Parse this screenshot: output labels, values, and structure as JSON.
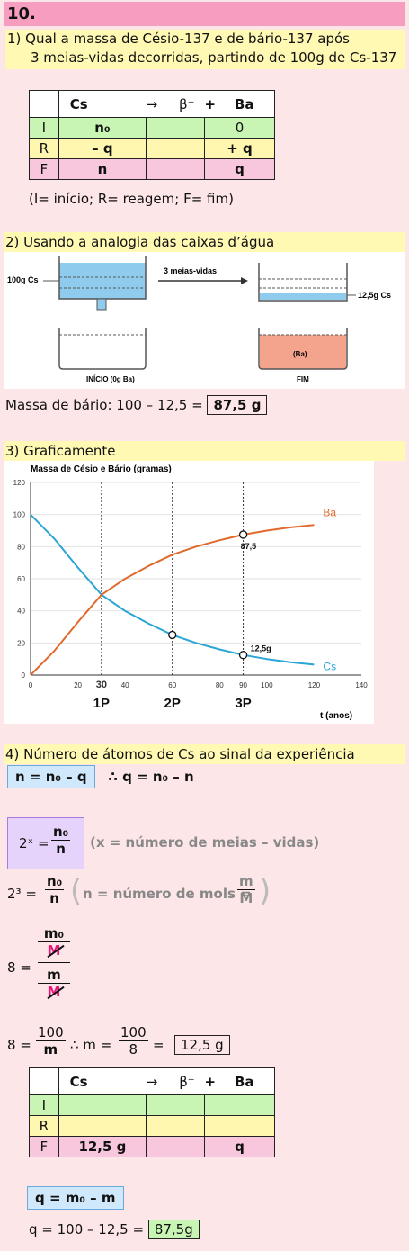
{
  "header": {
    "number": "10."
  },
  "q1": {
    "line1": "1)   Qual a massa de Césio-137 e de bário-137 após",
    "line2": "3 meias-vidas decorridas, partindo de 100g de Cs-137"
  },
  "table1": {
    "header": [
      "",
      "Cs",
      "→",
      "β⁻",
      "+",
      "Ba"
    ],
    "rows": [
      {
        "label": "I",
        "cs": "n₀",
        "beta": "",
        "ba": "0"
      },
      {
        "label": "R",
        "cs": "– q",
        "beta": "",
        "ba": "+ q"
      },
      {
        "label": "F",
        "cs": "n",
        "beta": "",
        "ba": "q"
      }
    ],
    "legend": "(I= início; R= reagem; F= fim)"
  },
  "sec2": {
    "title": "2) Usando a analogia das caixas d’água"
  },
  "tanks": {
    "left_label": "100g Cs",
    "arrow_label": "3 meias-vidas",
    "right_label": "12,5g Cs",
    "bottom_left_label": "INÍCIO (0g Ba)",
    "bottom_right_inner": "(Ba)",
    "bottom_right_label": "FIM",
    "water_color": "#8fcbec",
    "ba_color": "#f4a38c"
  },
  "mass_ba": {
    "text": "Massa de bário: 100 – 12,5 =",
    "result": "87,5 g"
  },
  "sec3": {
    "title": "3) Graficamente"
  },
  "chart_data": {
    "type": "line",
    "title": "Massa de Césio e Bário (gramas)",
    "xlabel": "t (anos)",
    "ylabel": "",
    "xlim": [
      0,
      140
    ],
    "ylim": [
      0,
      120
    ],
    "xticks": [
      0,
      20,
      30,
      40,
      60,
      80,
      90,
      100,
      120,
      140
    ],
    "yticks": [
      0,
      20,
      40,
      60,
      80,
      100,
      120
    ],
    "period_lines": [
      30,
      60,
      90
    ],
    "period_labels": [
      "1P",
      "2P",
      "3P"
    ],
    "series": [
      {
        "name": "Cs",
        "color": "#2aa5d6",
        "x": [
          0,
          10,
          20,
          30,
          40,
          50,
          60,
          70,
          80,
          90,
          100,
          110,
          120
        ],
        "y": [
          100,
          85,
          67,
          50,
          40,
          32,
          25,
          20,
          16,
          12.5,
          10,
          8,
          6.5
        ]
      },
      {
        "name": "Ba",
        "color": "#e06a2c",
        "x": [
          0,
          10,
          20,
          30,
          40,
          50,
          60,
          70,
          80,
          90,
          100,
          110,
          120
        ],
        "y": [
          0,
          15,
          33,
          50,
          60,
          68,
          75,
          80,
          84,
          87.5,
          90,
          92,
          93.5
        ]
      }
    ],
    "markers": [
      {
        "x": 60,
        "y": 25,
        "label": ""
      },
      {
        "x": 90,
        "y": 12.5,
        "label": "12,5g"
      },
      {
        "x": 90,
        "y": 87.5,
        "label": "87,5"
      }
    ]
  },
  "sec4": {
    "title": "4) Número de átomos de Cs ao sinal da experiência"
  },
  "eq1": {
    "box": "n = n₀ – q",
    "rest": "∴ q = n₀ – n"
  },
  "eq2": {
    "lhs": "2ˣ =",
    "num": "n₀",
    "den": "n",
    "note": "(x = número de meias – vidas)"
  },
  "eq3": {
    "lhs": "2³ =",
    "num": "n₀",
    "den": "n",
    "note": "n = número de mols =",
    "note_num": "m",
    "note_den": "M"
  },
  "eq4": {
    "lhs": "8 =",
    "top_num": "m₀",
    "top_den": "M",
    "bot_num": "m",
    "bot_den": "M"
  },
  "eq5": {
    "lhs": "8 =",
    "num1": "100",
    "den1": "m",
    "mid": "∴ m =",
    "num2": "100",
    "den2": "8",
    "eq": "=",
    "result": "12,5 g"
  },
  "table2": {
    "header": [
      "",
      "Cs",
      "→",
      "β⁻",
      "+",
      "Ba"
    ],
    "rows": [
      {
        "label": "I",
        "cs": "",
        "beta": "",
        "ba": ""
      },
      {
        "label": "R",
        "cs": "",
        "beta": "",
        "ba": ""
      },
      {
        "label": "F",
        "cs": "12,5 g",
        "beta": "",
        "ba": "q"
      }
    ]
  },
  "eq6": {
    "box": "q = m₀ – m"
  },
  "eq7": {
    "text": "q = 100 – 12,5 =",
    "result": "87,5g"
  }
}
